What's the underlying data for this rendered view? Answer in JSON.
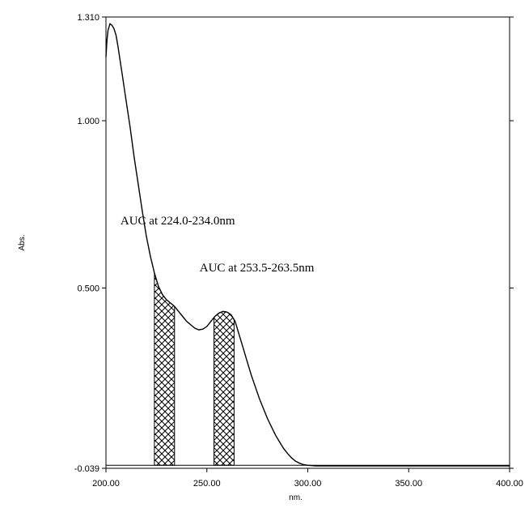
{
  "chart_data": {
    "type": "line",
    "title": "",
    "xlabel": "nm.",
    "ylabel": "Abs.",
    "xlim": [
      200.0,
      400.0
    ],
    "ylim": [
      -0.039,
      1.31
    ],
    "x_ticks": [
      200.0,
      250.0,
      300.0,
      350.0,
      400.0
    ],
    "x_tick_labels": [
      "200.00",
      "250.00",
      "300.00",
      "350.00",
      "400.00"
    ],
    "y_ticks": [
      -0.039,
      0.5,
      1.0,
      1.31
    ],
    "y_tick_labels": [
      "-0.039",
      "0.500",
      "1.000",
      "1.310"
    ],
    "grid": false,
    "baseline": -0.03,
    "series": [
      {
        "x": [
          200.0,
          200.5,
          201.0,
          202.0,
          203.0,
          204.0,
          205.0,
          206.0,
          208.0,
          210.0,
          212.0,
          214.0,
          216.0,
          218.0,
          220.0,
          222.0,
          224.0,
          226.0,
          228.0,
          230.0,
          232.0,
          234.0,
          236.0,
          238.0,
          240.0,
          242.0,
          244.0,
          246.0,
          248.0,
          250.0,
          252.0,
          254.0,
          256.0,
          258.0,
          260.0,
          262.0,
          264.0,
          266.0,
          268.0,
          270.0,
          272.0,
          274.0,
          276.0,
          278.0,
          280.0,
          282.0,
          284.0,
          286.0,
          288.0,
          290.0,
          292.0,
          294.0,
          296.0,
          298.0,
          300.0,
          302.0,
          304.0,
          306.0,
          310.0,
          320.0,
          340.0,
          360.0,
          380.0,
          400.0
        ],
        "values": [
          1.19,
          1.24,
          1.27,
          1.29,
          1.285,
          1.275,
          1.255,
          1.22,
          1.14,
          1.06,
          0.98,
          0.89,
          0.81,
          0.73,
          0.655,
          0.595,
          0.545,
          0.505,
          0.48,
          0.465,
          0.455,
          0.445,
          0.43,
          0.415,
          0.4,
          0.39,
          0.38,
          0.375,
          0.377,
          0.385,
          0.4,
          0.415,
          0.425,
          0.43,
          0.428,
          0.42,
          0.4,
          0.36,
          0.32,
          0.28,
          0.24,
          0.205,
          0.17,
          0.14,
          0.11,
          0.085,
          0.06,
          0.04,
          0.02,
          0.005,
          -0.008,
          -0.018,
          -0.024,
          -0.028,
          -0.03,
          -0.031,
          -0.032,
          -0.032,
          -0.032,
          -0.032,
          -0.032,
          -0.032,
          -0.032,
          -0.032
        ]
      }
    ],
    "shaded_regions": [
      {
        "from": 224.0,
        "to": 234.0,
        "pattern": "cross-hatch"
      },
      {
        "from": 253.5,
        "to": 263.5,
        "pattern": "cross-hatch"
      }
    ],
    "annotations": [
      {
        "text": "AUC at 224.0-234.0nm",
        "x": 224.0,
        "y": 0.69
      },
      {
        "text": "AUC at 253.5-263.5nm",
        "x": 248.0,
        "y": 0.55
      }
    ],
    "colors": {
      "line": "#000000",
      "hatch": "#000000",
      "background": "#ffffff"
    }
  }
}
